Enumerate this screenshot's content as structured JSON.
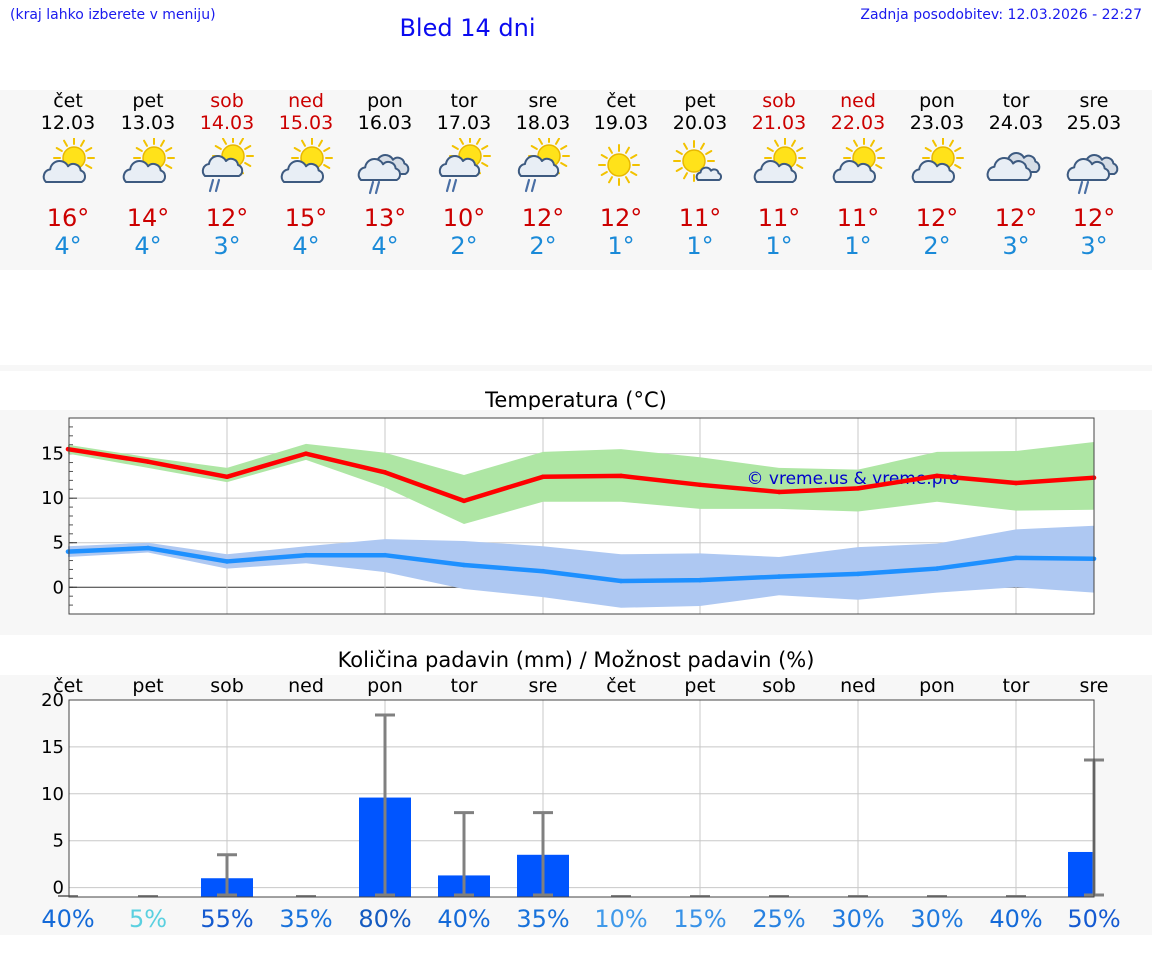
{
  "header": {
    "location_hint": "(kraj lahko izberete v meniju)",
    "title": "Bled 14 dni",
    "last_updated": "Zadnja posodobitev: 12.03.2026 - 22:27"
  },
  "days": [
    {
      "name": "čet",
      "date": "12.03",
      "icon": "partly-cloudy-icon",
      "max": "16°",
      "min": "4°",
      "weekend": false
    },
    {
      "name": "pet",
      "date": "13.03",
      "icon": "partly-cloudy-icon",
      "max": "14°",
      "min": "4°",
      "weekend": false
    },
    {
      "name": "sob",
      "date": "14.03",
      "icon": "sun-shower-icon",
      "max": "12°",
      "min": "3°",
      "weekend": true
    },
    {
      "name": "ned",
      "date": "15.03",
      "icon": "partly-cloudy-icon",
      "max": "15°",
      "min": "4°",
      "weekend": true
    },
    {
      "name": "pon",
      "date": "16.03",
      "icon": "cloud-rain-icon",
      "max": "13°",
      "min": "4°",
      "weekend": false
    },
    {
      "name": "tor",
      "date": "17.03",
      "icon": "sun-shower-icon",
      "max": "10°",
      "min": "2°",
      "weekend": false
    },
    {
      "name": "sre",
      "date": "18.03",
      "icon": "sun-shower-icon",
      "max": "12°",
      "min": "2°",
      "weekend": false
    },
    {
      "name": "čet",
      "date": "19.03",
      "icon": "sun-icon",
      "max": "12°",
      "min": "1°",
      "weekend": false
    },
    {
      "name": "pet",
      "date": "20.03",
      "icon": "sun-small-cloud-icon",
      "max": "11°",
      "min": "1°",
      "weekend": false
    },
    {
      "name": "sob",
      "date": "21.03",
      "icon": "partly-cloudy-icon",
      "max": "11°",
      "min": "1°",
      "weekend": true
    },
    {
      "name": "ned",
      "date": "22.03",
      "icon": "partly-cloudy-icon",
      "max": "11°",
      "min": "1°",
      "weekend": true
    },
    {
      "name": "pon",
      "date": "23.03",
      "icon": "partly-cloudy-icon",
      "max": "12°",
      "min": "2°",
      "weekend": false
    },
    {
      "name": "tor",
      "date": "24.03",
      "icon": "cloudy-icon",
      "max": "12°",
      "min": "3°",
      "weekend": false
    },
    {
      "name": "sre",
      "date": "25.03",
      "icon": "cloud-rain-icon",
      "max": "12°",
      "min": "3°",
      "weekend": false
    }
  ],
  "colors": {
    "max_line": "#ff0000",
    "max_band": "#aee6a4",
    "min_line": "#1e90ff",
    "min_band": "#aec8f2",
    "bar": "#0055ff",
    "error": "#808080",
    "weekend": "#cc0000",
    "link": "#0b0bf0"
  },
  "chart_data": [
    {
      "type": "line",
      "title": "Temperatura (°C)",
      "watermark": "© vreme.us & vreme.pro",
      "categories": [
        "12.03",
        "13.03",
        "14.03",
        "15.03",
        "16.03",
        "17.03",
        "18.03",
        "19.03",
        "20.03",
        "21.03",
        "22.03",
        "23.03",
        "24.03",
        "25.03"
      ],
      "ylim": [
        -3,
        19
      ],
      "yticks": [
        0,
        5,
        10,
        15
      ],
      "series": [
        {
          "name": "max",
          "values": [
            15.5,
            14.1,
            12.4,
            15.0,
            12.9,
            9.7,
            12.4,
            12.5,
            11.5,
            10.7,
            11.1,
            12.5,
            11.7,
            12.3
          ],
          "band_low": [
            15.0,
            13.4,
            11.8,
            14.3,
            11.2,
            7.1,
            9.6,
            9.6,
            8.8,
            8.8,
            8.5,
            9.6,
            8.6,
            8.7
          ],
          "band_high": [
            16.0,
            14.6,
            13.4,
            16.1,
            15.1,
            12.6,
            15.2,
            15.5,
            14.6,
            13.4,
            13.2,
            15.2,
            15.3,
            16.3
          ]
        },
        {
          "name": "min",
          "values": [
            4.0,
            4.4,
            2.9,
            3.6,
            3.6,
            2.5,
            1.8,
            0.7,
            0.8,
            1.2,
            1.5,
            2.1,
            3.3,
            3.2
          ],
          "band_low": [
            3.4,
            3.9,
            2.1,
            2.7,
            1.7,
            -0.2,
            -1.1,
            -2.3,
            -2.1,
            -0.9,
            -1.4,
            -0.6,
            0.0,
            -0.6
          ],
          "band_high": [
            4.6,
            5.0,
            3.7,
            4.6,
            5.4,
            5.2,
            4.6,
            3.7,
            3.8,
            3.4,
            4.5,
            4.9,
            6.5,
            6.9
          ]
        }
      ]
    },
    {
      "type": "bar",
      "title": "Količina padavin (mm) / Možnost padavin (%)",
      "categories": [
        "čet",
        "pet",
        "sob",
        "ned",
        "pon",
        "tor",
        "sre",
        "čet",
        "pet",
        "sob",
        "ned",
        "pon",
        "tor",
        "sre"
      ],
      "ylim": [
        -1,
        20
      ],
      "yticks": [
        0,
        5,
        10,
        15,
        20
      ],
      "values": [
        0,
        0,
        1.0,
        0,
        9.6,
        1.3,
        3.5,
        0,
        0,
        0,
        0,
        0,
        0,
        3.8
      ],
      "error_high": [
        0,
        0,
        3.5,
        0,
        18.4,
        8.0,
        8.0,
        0,
        0,
        0,
        0,
        0,
        0,
        13.6
      ],
      "probability": [
        "40%",
        "5%",
        "55%",
        "35%",
        "80%",
        "40%",
        "35%",
        "10%",
        "15%",
        "25%",
        "30%",
        "30%",
        "40%",
        "50%"
      ],
      "probability_values": [
        40,
        5,
        55,
        35,
        80,
        40,
        35,
        10,
        15,
        25,
        30,
        30,
        40,
        50
      ]
    }
  ]
}
